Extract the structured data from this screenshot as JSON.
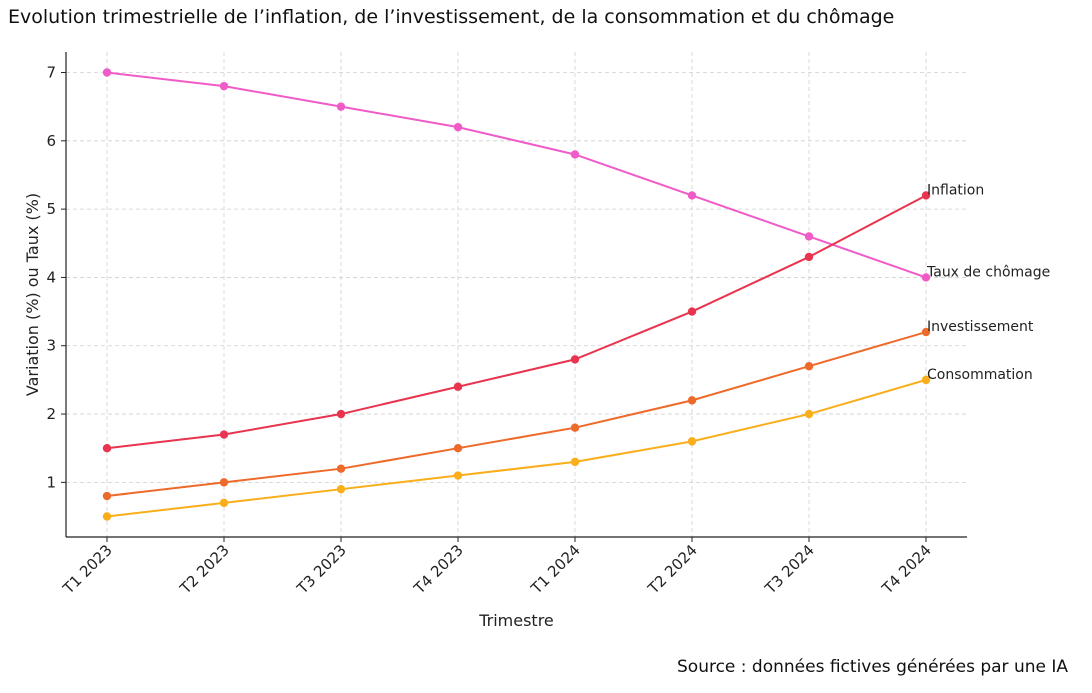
{
  "chart_data": {
    "type": "line",
    "title": "Evolution trimestrielle de l’inflation, de l’investissement, de la consommation et du chômage",
    "xlabel": "Trimestre",
    "ylabel": "Variation (%) ou Taux (%)",
    "categories": [
      "T1 2023",
      "T2 2023",
      "T3 2023",
      "T4 2023",
      "T1 2024",
      "T2 2024",
      "T3 2024",
      "T4 2024"
    ],
    "yticks": [
      1,
      2,
      3,
      4,
      5,
      6,
      7
    ],
    "ylim": [
      0.2,
      7.3
    ],
    "grid": true,
    "legend": "end-of-line labels",
    "series": [
      {
        "name": "Taux de chômage",
        "color": "#f05bc8",
        "values": [
          7.0,
          6.8,
          6.5,
          6.2,
          5.8,
          5.2,
          4.6,
          4.0
        ]
      },
      {
        "name": "Inflation",
        "color": "#e8344e",
        "values": [
          1.5,
          1.7,
          2.0,
          2.4,
          2.8,
          3.5,
          4.3,
          5.2
        ]
      },
      {
        "name": "Investissement",
        "color": "#ee6a2a",
        "values": [
          0.8,
          1.0,
          1.2,
          1.5,
          1.8,
          2.2,
          2.7,
          3.2
        ]
      },
      {
        "name": "Consommation",
        "color": "#f9ae1a",
        "values": [
          0.5,
          0.7,
          0.9,
          1.1,
          1.3,
          1.6,
          2.0,
          2.5
        ]
      }
    ],
    "source": "Source : données fictives générées par une IA"
  }
}
